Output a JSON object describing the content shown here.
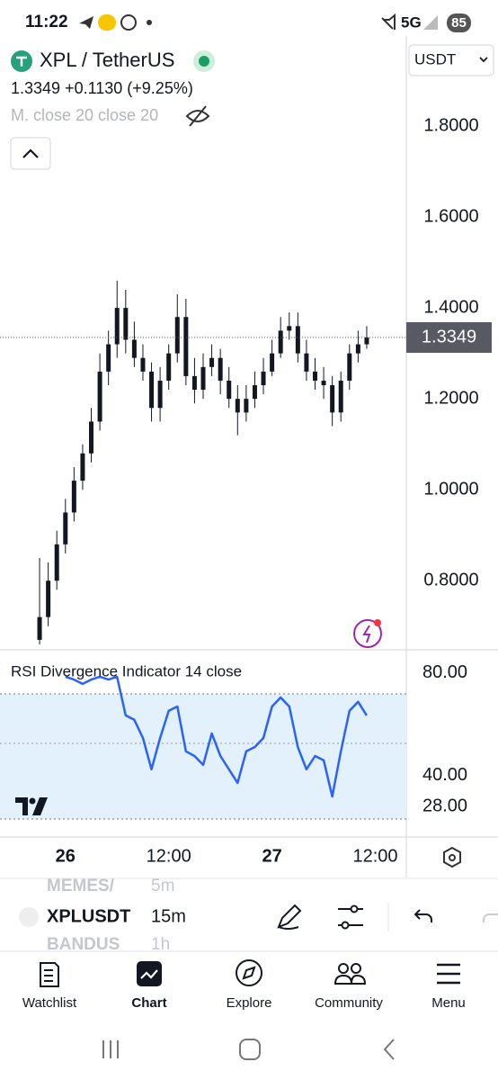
{
  "status_bar": {
    "time": "11:22",
    "network": "5G",
    "battery": "85"
  },
  "header": {
    "symbol": "XPL / TetherUS",
    "currency": "USDT",
    "quote": "1.3349 +0.1130 (+9.25%)",
    "indicator": "M. close 20 close 20"
  },
  "chart_data": [
    {
      "type": "candlestick",
      "color": "#131722",
      "x": [
        -3,
        -2,
        -1,
        0,
        1,
        2,
        3,
        4,
        5,
        6,
        7,
        8,
        9,
        10,
        11,
        12,
        13,
        14,
        15,
        16,
        17,
        18,
        19,
        20,
        21,
        22,
        23,
        24,
        25,
        26,
        27,
        28,
        29,
        30,
        31,
        32,
        33,
        34,
        35
      ],
      "open": [
        0.67,
        0.72,
        0.8,
        0.88,
        0.95,
        1.02,
        1.08,
        1.15,
        1.26,
        1.32,
        1.4,
        1.33,
        1.29,
        1.26,
        1.18,
        1.24,
        1.3,
        1.38,
        1.25,
        1.22,
        1.27,
        1.29,
        1.24,
        1.2,
        1.17,
        1.2,
        1.23,
        1.26,
        1.3,
        1.35,
        1.36,
        1.3,
        1.26,
        1.24,
        1.23,
        1.17,
        1.24,
        1.3,
        1.32
      ],
      "high": [
        0.85,
        0.84,
        0.91,
        0.98,
        1.05,
        1.1,
        1.18,
        1.3,
        1.35,
        1.46,
        1.44,
        1.37,
        1.32,
        1.28,
        1.27,
        1.32,
        1.43,
        1.42,
        1.29,
        1.3,
        1.32,
        1.31,
        1.27,
        1.23,
        1.23,
        1.26,
        1.29,
        1.33,
        1.38,
        1.39,
        1.39,
        1.33,
        1.29,
        1.27,
        1.25,
        1.26,
        1.32,
        1.35,
        1.36
      ],
      "low": [
        0.66,
        0.7,
        0.78,
        0.86,
        0.93,
        1.0,
        1.06,
        1.13,
        1.23,
        1.29,
        1.3,
        1.27,
        1.24,
        1.15,
        1.15,
        1.22,
        1.28,
        1.23,
        1.19,
        1.2,
        1.25,
        1.21,
        1.18,
        1.12,
        1.15,
        1.18,
        1.21,
        1.25,
        1.29,
        1.33,
        1.28,
        1.24,
        1.22,
        1.2,
        1.14,
        1.15,
        1.22,
        1.28,
        1.31
      ],
      "close": [
        0.72,
        0.8,
        0.88,
        0.95,
        1.02,
        1.08,
        1.15,
        1.26,
        1.32,
        1.4,
        1.33,
        1.29,
        1.26,
        1.18,
        1.24,
        1.3,
        1.38,
        1.25,
        1.22,
        1.27,
        1.29,
        1.24,
        1.2,
        1.17,
        1.2,
        1.23,
        1.26,
        1.3,
        1.35,
        1.36,
        1.3,
        1.26,
        1.24,
        1.23,
        1.17,
        1.24,
        1.3,
        1.32,
        1.3349
      ],
      "current_price": 1.3349,
      "xlim": [
        -7.6,
        39.6
      ],
      "xticks": [
        {
          "value": 0,
          "label": "26"
        },
        {
          "value": 12,
          "label": "12:00"
        },
        {
          "value": 24,
          "label": "27"
        },
        {
          "value": 36,
          "label": "12:00"
        }
      ],
      "ylim": [
        0.652,
        1.909
      ],
      "yticks": [
        {
          "value": 1.8,
          "label": "1.8000"
        },
        {
          "value": 1.6,
          "label": "1.6000"
        },
        {
          "value": 1.4,
          "label": "1.4000"
        },
        {
          "value": 1.2,
          "label": "1.2000"
        },
        {
          "value": 1.0,
          "label": "1.0000"
        },
        {
          "value": 0.8,
          "label": "0.8000"
        }
      ]
    },
    {
      "type": "line",
      "title": "RSI Divergence Indicator 14 close",
      "color": "#2962ff",
      "x": [
        0,
        1,
        2,
        3,
        4,
        5,
        6,
        7,
        8,
        9,
        10,
        11,
        12,
        13,
        14,
        15,
        16,
        17,
        18,
        19,
        20,
        21,
        22,
        23,
        24,
        25,
        26,
        27,
        28,
        29,
        30,
        31,
        32,
        33,
        34,
        35
      ],
      "values": [
        78.6,
        77.5,
        75.8,
        77.5,
        78.6,
        77.5,
        78.6,
        63.5,
        61.8,
        54.7,
        42.5,
        54.7,
        65.3,
        67,
        49.5,
        47.7,
        44.2,
        56.5,
        47.7,
        42.5,
        37.2,
        49.5,
        51.2,
        54.7,
        67,
        70.5,
        67,
        51.2,
        42.5,
        47.7,
        46,
        31.9,
        49.5,
        65.3,
        68.8,
        63.5
      ],
      "xlim": [
        -7.6,
        39.6
      ],
      "ylim": [
        16.1,
        89.1
      ],
      "yticks": [
        {
          "value": 80,
          "label": "80.00"
        },
        {
          "value": 40,
          "label": "40.00"
        },
        {
          "value": 28,
          "label": "28.00"
        }
      ]
    }
  ],
  "toolbar": {
    "prev_symbol": "MEMES/",
    "prev_interval": "5m",
    "symbol": "XPLUSDT",
    "interval": "15m",
    "next_symbol": "BANDUS",
    "next_interval": "1h"
  },
  "nav": [
    "Watchlist",
    "Chart",
    "Explore",
    "Community",
    "Menu"
  ]
}
